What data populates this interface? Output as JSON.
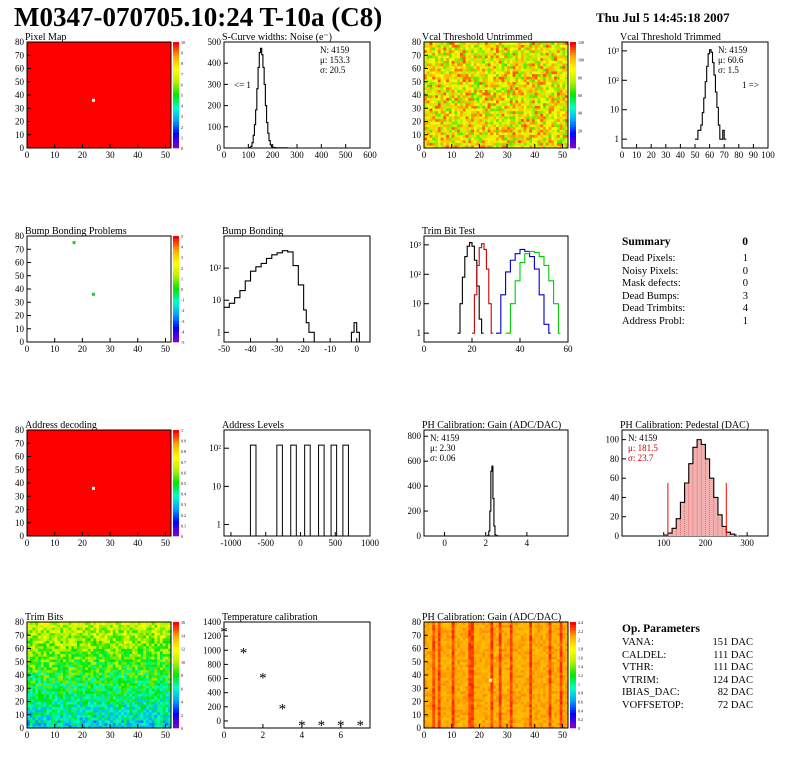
{
  "title": "M0347-070705.10:24 T-10a (C8)",
  "date": "Thu Jul  5 14:45:18 2007",
  "colors": {
    "red": "#ff0000",
    "green": "#00cc00",
    "blue": "#0000cc",
    "black": "#000000",
    "fill_red": "#e06060"
  },
  "chart_data": [
    {
      "id": "pixel-map",
      "type": "heatmap",
      "title": "Pixel Map",
      "xlim": [
        0,
        52
      ],
      "ylim": [
        0,
        80
      ],
      "xticks": [
        0,
        10,
        20,
        30,
        40,
        50
      ],
      "yticks": [
        0,
        10,
        20,
        30,
        40,
        50,
        60,
        70,
        80
      ],
      "zticks": [
        "0",
        "1",
        "2",
        "3",
        "4",
        "5",
        "6",
        "7",
        "8",
        "9",
        "10"
      ],
      "fill": "uniform-red",
      "markers": [
        {
          "x": 24,
          "y": 36,
          "color": "#ffffff"
        }
      ]
    },
    {
      "id": "scurve",
      "type": "line",
      "title": "S-Curve widths: Noise (e⁻)",
      "xlim": [
        0,
        600
      ],
      "ylim": [
        0,
        500
      ],
      "xticks": [
        0,
        100,
        200,
        300,
        400,
        500,
        600
      ],
      "yticks": [
        0,
        100,
        200,
        300,
        400,
        500
      ],
      "stats": [
        "N:  4159",
        "μ:  153.3",
        "σ:  20.5"
      ],
      "annotation": "<= 1",
      "series": [
        {
          "x": [
            100,
            105,
            110,
            115,
            120,
            125,
            130,
            135,
            140,
            145,
            150,
            155,
            160,
            165,
            170,
            175,
            180,
            185,
            190,
            195,
            200,
            205,
            210,
            220,
            240,
            260
          ],
          "y": [
            0,
            2,
            8,
            25,
            60,
            110,
            180,
            280,
            380,
            450,
            470,
            440,
            380,
            300,
            200,
            120,
            70,
            35,
            15,
            6,
            3,
            2,
            1,
            1,
            1,
            0
          ],
          "color": "#000000"
        }
      ]
    },
    {
      "id": "vcal-untrimmed",
      "type": "heatmap",
      "title": "Vcal Threshold Untrimmed",
      "xlim": [
        0,
        52
      ],
      "ylim": [
        0,
        80
      ],
      "xticks": [
        0,
        10,
        20,
        30,
        40,
        50
      ],
      "yticks": [
        0,
        10,
        20,
        30,
        40,
        50,
        60,
        70,
        80
      ],
      "zticks": [
        "0",
        "20",
        "40",
        "60",
        "80",
        "100",
        "120"
      ],
      "fill": "noisy-warm"
    },
    {
      "id": "vcal-trimmed",
      "type": "line",
      "title": "Vcal Threshold Trimmed",
      "xlim": [
        0,
        100
      ],
      "ylog": true,
      "ylim": [
        0.5,
        2000
      ],
      "xticks": [
        0,
        10,
        20,
        30,
        40,
        50,
        60,
        70,
        80,
        90,
        100
      ],
      "yticklabels": [
        "1",
        "10",
        "10²",
        "10³"
      ],
      "stats": [
        "N:  4159",
        "μ:  60.6",
        "σ:  1.5"
      ],
      "annotation": "1 =>",
      "series": [
        {
          "x": [
            50,
            51,
            52,
            53,
            54,
            55,
            56,
            57,
            58,
            59,
            60,
            61,
            62,
            63,
            64,
            65,
            66,
            67,
            68,
            69,
            70
          ],
          "y": [
            1,
            1,
            2,
            2,
            3,
            8,
            25,
            90,
            300,
            800,
            1100,
            900,
            400,
            150,
            40,
            12,
            3,
            1,
            1,
            2,
            1
          ],
          "color": "#000000"
        }
      ]
    },
    {
      "id": "bump-problems",
      "type": "heatmap",
      "title": "Bump Bonding Problems",
      "xlim": [
        0,
        52
      ],
      "ylim": [
        0,
        80
      ],
      "xticks": [
        0,
        10,
        20,
        30,
        40,
        50
      ],
      "yticks": [
        0,
        10,
        20,
        30,
        40,
        50,
        60,
        70,
        80
      ],
      "zticks": [
        "-5",
        "-4",
        "-3",
        "-2",
        "-1",
        "0",
        "1",
        "2",
        "3",
        "4",
        "5"
      ],
      "fill": "white",
      "markers": [
        {
          "x": 17,
          "y": 75,
          "color": "#22cc22"
        },
        {
          "x": 24,
          "y": 36,
          "color": "#22cc22"
        }
      ]
    },
    {
      "id": "bump-bonding",
      "type": "line",
      "title": "Bump Bonding",
      "xlim": [
        -50,
        5
      ],
      "ylog": true,
      "ylim": [
        0.5,
        1000
      ],
      "xticks": [
        -50,
        -40,
        -30,
        -20,
        -10,
        0
      ],
      "yticklabels": [
        "1",
        "10",
        "10²"
      ],
      "series": [
        {
          "x": [
            -50,
            -48,
            -46,
            -44,
            -42,
            -40,
            -38,
            -36,
            -34,
            -32,
            -30,
            -28,
            -26,
            -24,
            -22,
            -20,
            -19,
            -18,
            -17,
            -16,
            -15,
            -14,
            -13,
            -12,
            -11,
            -10,
            -2,
            -1,
            0,
            1
          ],
          "y": [
            6,
            8,
            12,
            20,
            40,
            80,
            110,
            140,
            200,
            260,
            300,
            350,
            320,
            120,
            30,
            5,
            2,
            1,
            1,
            0.5,
            0.5,
            0.5,
            0.5,
            0.5,
            0.5,
            0.5,
            1,
            2,
            1,
            0.5
          ],
          "color": "#000000"
        }
      ]
    },
    {
      "id": "trim-bit-test",
      "type": "line",
      "title": "Trim Bit Test",
      "xlim": [
        0,
        60
      ],
      "ylog": true,
      "ylim": [
        0.5,
        2000
      ],
      "xticks": [
        0,
        20,
        40,
        60
      ],
      "yticklabels": [
        "1",
        "10",
        "10²",
        "10³"
      ],
      "series": [
        {
          "name": "",
          "x": [
            14,
            15,
            16,
            17,
            18,
            19,
            20,
            21,
            22,
            23,
            24
          ],
          "y": [
            1,
            10,
            80,
            400,
            900,
            1200,
            900,
            300,
            40,
            3,
            1
          ],
          "color": "#000000"
        },
        {
          "name": "",
          "x": [
            20,
            21,
            22,
            23,
            24,
            25,
            26,
            27,
            28
          ],
          "y": [
            1,
            20,
            200,
            800,
            1100,
            700,
            150,
            10,
            1
          ],
          "color": "#cc0000"
        },
        {
          "name": "",
          "x": [
            30,
            32,
            34,
            36,
            38,
            40,
            42,
            44,
            46,
            48,
            50,
            52
          ],
          "y": [
            1,
            20,
            120,
            300,
            500,
            700,
            600,
            400,
            150,
            20,
            2,
            1
          ],
          "color": "#0000cc"
        },
        {
          "name": "",
          "x": [
            34,
            36,
            38,
            40,
            42,
            44,
            46,
            48,
            50,
            52,
            54,
            56
          ],
          "y": [
            1,
            10,
            60,
            250,
            500,
            600,
            550,
            400,
            200,
            60,
            10,
            1
          ],
          "color": "#00cc00"
        }
      ]
    },
    {
      "id": "address-decoding",
      "type": "heatmap",
      "title": "Address decoding",
      "xlim": [
        0,
        52
      ],
      "ylim": [
        0,
        80
      ],
      "xticks": [
        0,
        10,
        20,
        30,
        40,
        50
      ],
      "yticks": [
        0,
        10,
        20,
        30,
        40,
        50,
        60,
        70,
        80
      ],
      "zticks": [
        "0",
        "0.1",
        "0.2",
        "0.3",
        "0.4",
        "0.5",
        "0.6",
        "0.7",
        "0.8",
        "0.9",
        "1"
      ],
      "fill": "uniform-red",
      "markers": [
        {
          "x": 24,
          "y": 36,
          "color": "#ffffff"
        }
      ]
    },
    {
      "id": "address-levels",
      "type": "line",
      "title": "Address Levels",
      "xlim": [
        -1100,
        1000
      ],
      "ylog": true,
      "ylim": [
        0.5,
        300
      ],
      "xticks": [
        -1000,
        -500,
        0,
        500,
        1000
      ],
      "yticklabels": [
        "1",
        "10",
        "10²"
      ],
      "peaks": [
        -680,
        -300,
        -100,
        100,
        300,
        480,
        650
      ],
      "peak_height": 120
    },
    {
      "id": "ph-gain",
      "type": "line",
      "title": "PH Calibration: Gain (ADC/DAC)",
      "xlim": [
        -1,
        6
      ],
      "ylim": [
        0,
        850
      ],
      "xticks": [
        0,
        2,
        4
      ],
      "yticks": [
        0,
        200,
        400,
        600,
        800
      ],
      "stats": [
        "N:  4159",
        "μ:  2.30",
        "σ:  0.06"
      ],
      "series": [
        {
          "x": [
            2.0,
            2.1,
            2.15,
            2.2,
            2.25,
            2.3,
            2.35,
            2.4,
            2.45,
            2.5,
            2.6
          ],
          "y": [
            0,
            5,
            40,
            200,
            520,
            560,
            300,
            80,
            10,
            2,
            0
          ],
          "color": "#000000"
        }
      ]
    },
    {
      "id": "ph-pedestal",
      "type": "area",
      "title": "PH Calibration: Pedestal (DAC)",
      "xlim": [
        0,
        350
      ],
      "ylim": [
        0,
        110
      ],
      "xticks": [
        100,
        200,
        300
      ],
      "yticks": [
        0,
        20,
        40,
        60,
        80,
        100
      ],
      "stats": [
        "N:  4159",
        "μ:  181.5",
        "σ:  23.7"
      ],
      "cut_lines": [
        110,
        250
      ],
      "series": [
        {
          "x": [
            100,
            110,
            120,
            130,
            140,
            150,
            160,
            170,
            180,
            190,
            200,
            210,
            220,
            230,
            240,
            250,
            260,
            270
          ],
          "y": [
            1,
            3,
            8,
            18,
            35,
            55,
            75,
            92,
            100,
            95,
            80,
            60,
            40,
            22,
            10,
            4,
            2,
            1
          ],
          "color": "#000000"
        }
      ]
    },
    {
      "id": "trim-bits",
      "type": "heatmap",
      "title": "Trim Bits",
      "xlim": [
        0,
        52
      ],
      "ylim": [
        0,
        80
      ],
      "xticks": [
        0,
        10,
        20,
        30,
        40,
        50
      ],
      "yticks": [
        0,
        10,
        20,
        30,
        40,
        50,
        60,
        70,
        80
      ],
      "zticks": [
        "0",
        "2",
        "4",
        "6",
        "8",
        "10",
        "12",
        "14",
        "16"
      ],
      "fill": "noisy-cool"
    },
    {
      "id": "temperature",
      "type": "scatter",
      "title": "Temperature calibration",
      "xlim": [
        0,
        7.5
      ],
      "ylim": [
        -100,
        1400
      ],
      "xticks": [
        0,
        2,
        4,
        6
      ],
      "yticks": [
        0,
        200,
        400,
        600,
        800,
        1000,
        1200,
        1400
      ],
      "series": [
        {
          "x": [
            0,
            1,
            2,
            3,
            4,
            5,
            6,
            7
          ],
          "y": [
            1280,
            980,
            630,
            190,
            -40,
            -40,
            -40,
            -40
          ],
          "color": "#000000"
        }
      ]
    },
    {
      "id": "ph-gain-map",
      "type": "heatmap",
      "title": "PH Calibration: Gain (ADC/DAC)",
      "xlim": [
        0,
        52
      ],
      "ylim": [
        0,
        80
      ],
      "xticks": [
        0,
        10,
        20,
        30,
        40,
        50
      ],
      "yticks": [
        0,
        10,
        20,
        30,
        40,
        50,
        60,
        70,
        80
      ],
      "zticks": [
        "0",
        "0.2",
        "0.4",
        "0.6",
        "0.8",
        "1",
        "1.2",
        "1.4",
        "1.6",
        "1.8",
        "2",
        "2.2",
        "2.4"
      ],
      "fill": "column-red",
      "markers": [
        {
          "x": 24,
          "y": 36,
          "color": "#ffffff"
        }
      ]
    }
  ],
  "summary": {
    "title": "Summary",
    "total": "0",
    "rows": [
      {
        "label": "Dead Pixels:",
        "value": "1"
      },
      {
        "label": "Noisy Pixels:",
        "value": "0"
      },
      {
        "label": "Mask defects:",
        "value": "0"
      },
      {
        "label": "Dead Bumps:",
        "value": "3"
      },
      {
        "label": "Dead Trimbits:",
        "value": "4"
      },
      {
        "label": "Address Probl:",
        "value": "1"
      }
    ]
  },
  "op_params": {
    "title": "Op. Parameters",
    "rows": [
      {
        "label": "VANA:",
        "value": "151 DAC"
      },
      {
        "label": "CALDEL:",
        "value": "111 DAC"
      },
      {
        "label": "VTHR:",
        "value": "111 DAC"
      },
      {
        "label": "VTRIM:",
        "value": "124 DAC"
      },
      {
        "label": "IBIAS_DAC:",
        "value": "82 DAC"
      },
      {
        "label": "VOFFSETOP:",
        "value": "72 DAC"
      }
    ]
  }
}
